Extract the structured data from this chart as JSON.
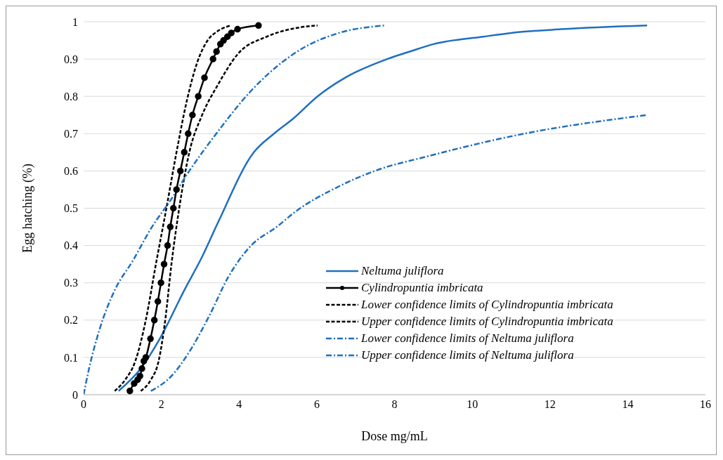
{
  "chart_data": {
    "type": "line",
    "xlabel": "Dose mg/mL",
    "ylabel": "Egg hatching (%)",
    "xlim": [
      0,
      16
    ],
    "xticks": [
      0,
      2,
      4,
      6,
      8,
      10,
      12,
      14,
      16
    ],
    "ylim": [
      0,
      1
    ],
    "yticks": [
      0,
      0.1,
      0.2,
      0.3,
      0.4,
      0.5,
      0.6,
      0.7,
      0.8,
      0.9,
      1
    ],
    "grid": "y",
    "legend": "bottom right",
    "series": [
      {
        "name": "Neltuma juliflora",
        "color": "#1f6fbf",
        "line_style": "solid",
        "marker": "none",
        "x": [
          0.9,
          1.47,
          1.96,
          2.59,
          3.05,
          3.45,
          4.38,
          4.9,
          5.39,
          6.02,
          6.73,
          7.81,
          8.39,
          9,
          10.28,
          11,
          12.29,
          14.5
        ],
        "values": [
          0.01,
          0.07,
          0.15,
          0.28,
          0.37,
          0.46,
          0.65,
          0.7,
          0.74,
          0.8,
          0.85,
          0.9,
          0.92,
          0.94,
          0.96,
          0.97,
          0.98,
          0.99
        ]
      },
      {
        "name": "Cylindropuntia imbricata",
        "color": "#000000",
        "line_style": "solid",
        "marker": "circle",
        "x": [
          1.19,
          1.3,
          1.39,
          1.45,
          1.5,
          1.55,
          1.6,
          1.72,
          1.82,
          1.91,
          1.99,
          2.07,
          2.16,
          2.23,
          2.31,
          2.39,
          2.49,
          2.59,
          2.69,
          2.8,
          2.95,
          3.11,
          3.33,
          3.42,
          3.52,
          3.6,
          3.7,
          3.8,
          3.96,
          4.5
        ],
        "values": [
          0.01,
          0.03,
          0.04,
          0.05,
          0.07,
          0.09,
          0.1,
          0.15,
          0.2,
          0.25,
          0.3,
          0.35,
          0.4,
          0.45,
          0.5,
          0.55,
          0.6,
          0.65,
          0.7,
          0.75,
          0.8,
          0.85,
          0.9,
          0.92,
          0.94,
          0.95,
          0.96,
          0.97,
          0.98,
          0.99
        ]
      },
      {
        "name": "Lower confidence limits of Cylindropuntia imbricata",
        "color": "#000000",
        "line_style": "dashed",
        "marker": "none",
        "x": [
          0.8,
          1.07,
          1.33,
          1.6,
          1.86,
          2.13,
          2.39,
          2.66,
          2.92,
          3.19,
          3.45,
          3.78
        ],
        "values": [
          0.01,
          0.04,
          0.09,
          0.2,
          0.35,
          0.5,
          0.65,
          0.79,
          0.89,
          0.95,
          0.975,
          0.99
        ]
      },
      {
        "name": "Upper confidence limits of Cylindropuntia imbricata",
        "color": "#000000",
        "line_style": "dashed",
        "marker": "none",
        "x": [
          1.47,
          1.73,
          1.93,
          2.1,
          2.26,
          2.46,
          2.72,
          3.05,
          3.45,
          3.98,
          4.71,
          5.57,
          6.02
        ],
        "values": [
          0.01,
          0.04,
          0.09,
          0.2,
          0.35,
          0.5,
          0.65,
          0.75,
          0.83,
          0.915,
          0.96,
          0.985,
          0.99
        ]
      },
      {
        "name": "Lower confidence limits of Neltuma juliflora",
        "color": "#1f6fbf",
        "line_style": "dashdot",
        "marker": "none",
        "x": [
          1.73,
          2.26,
          2.72,
          3.25,
          3.72,
          4.31,
          4.97,
          5.44,
          6.5,
          7.49,
          8.88,
          11.34,
          14.5
        ],
        "values": [
          0.01,
          0.05,
          0.115,
          0.215,
          0.315,
          0.4,
          0.45,
          0.49,
          0.555,
          0.6,
          0.64,
          0.7,
          0.75
        ]
      },
      {
        "name": "Upper confidence limits of Neltuma juliflora",
        "color": "#1f6fbf",
        "line_style": "dashdot",
        "marker": "none",
        "x": [
          0,
          0.14,
          0.41,
          0.8,
          1.27,
          1.73,
          2.26,
          2.72,
          3.45,
          4.31,
          4.97,
          5.57,
          6.57,
          7.74
        ],
        "values": [
          0,
          0.07,
          0.175,
          0.28,
          0.36,
          0.445,
          0.525,
          0.6,
          0.705,
          0.815,
          0.88,
          0.925,
          0.97,
          0.99
        ]
      }
    ]
  }
}
